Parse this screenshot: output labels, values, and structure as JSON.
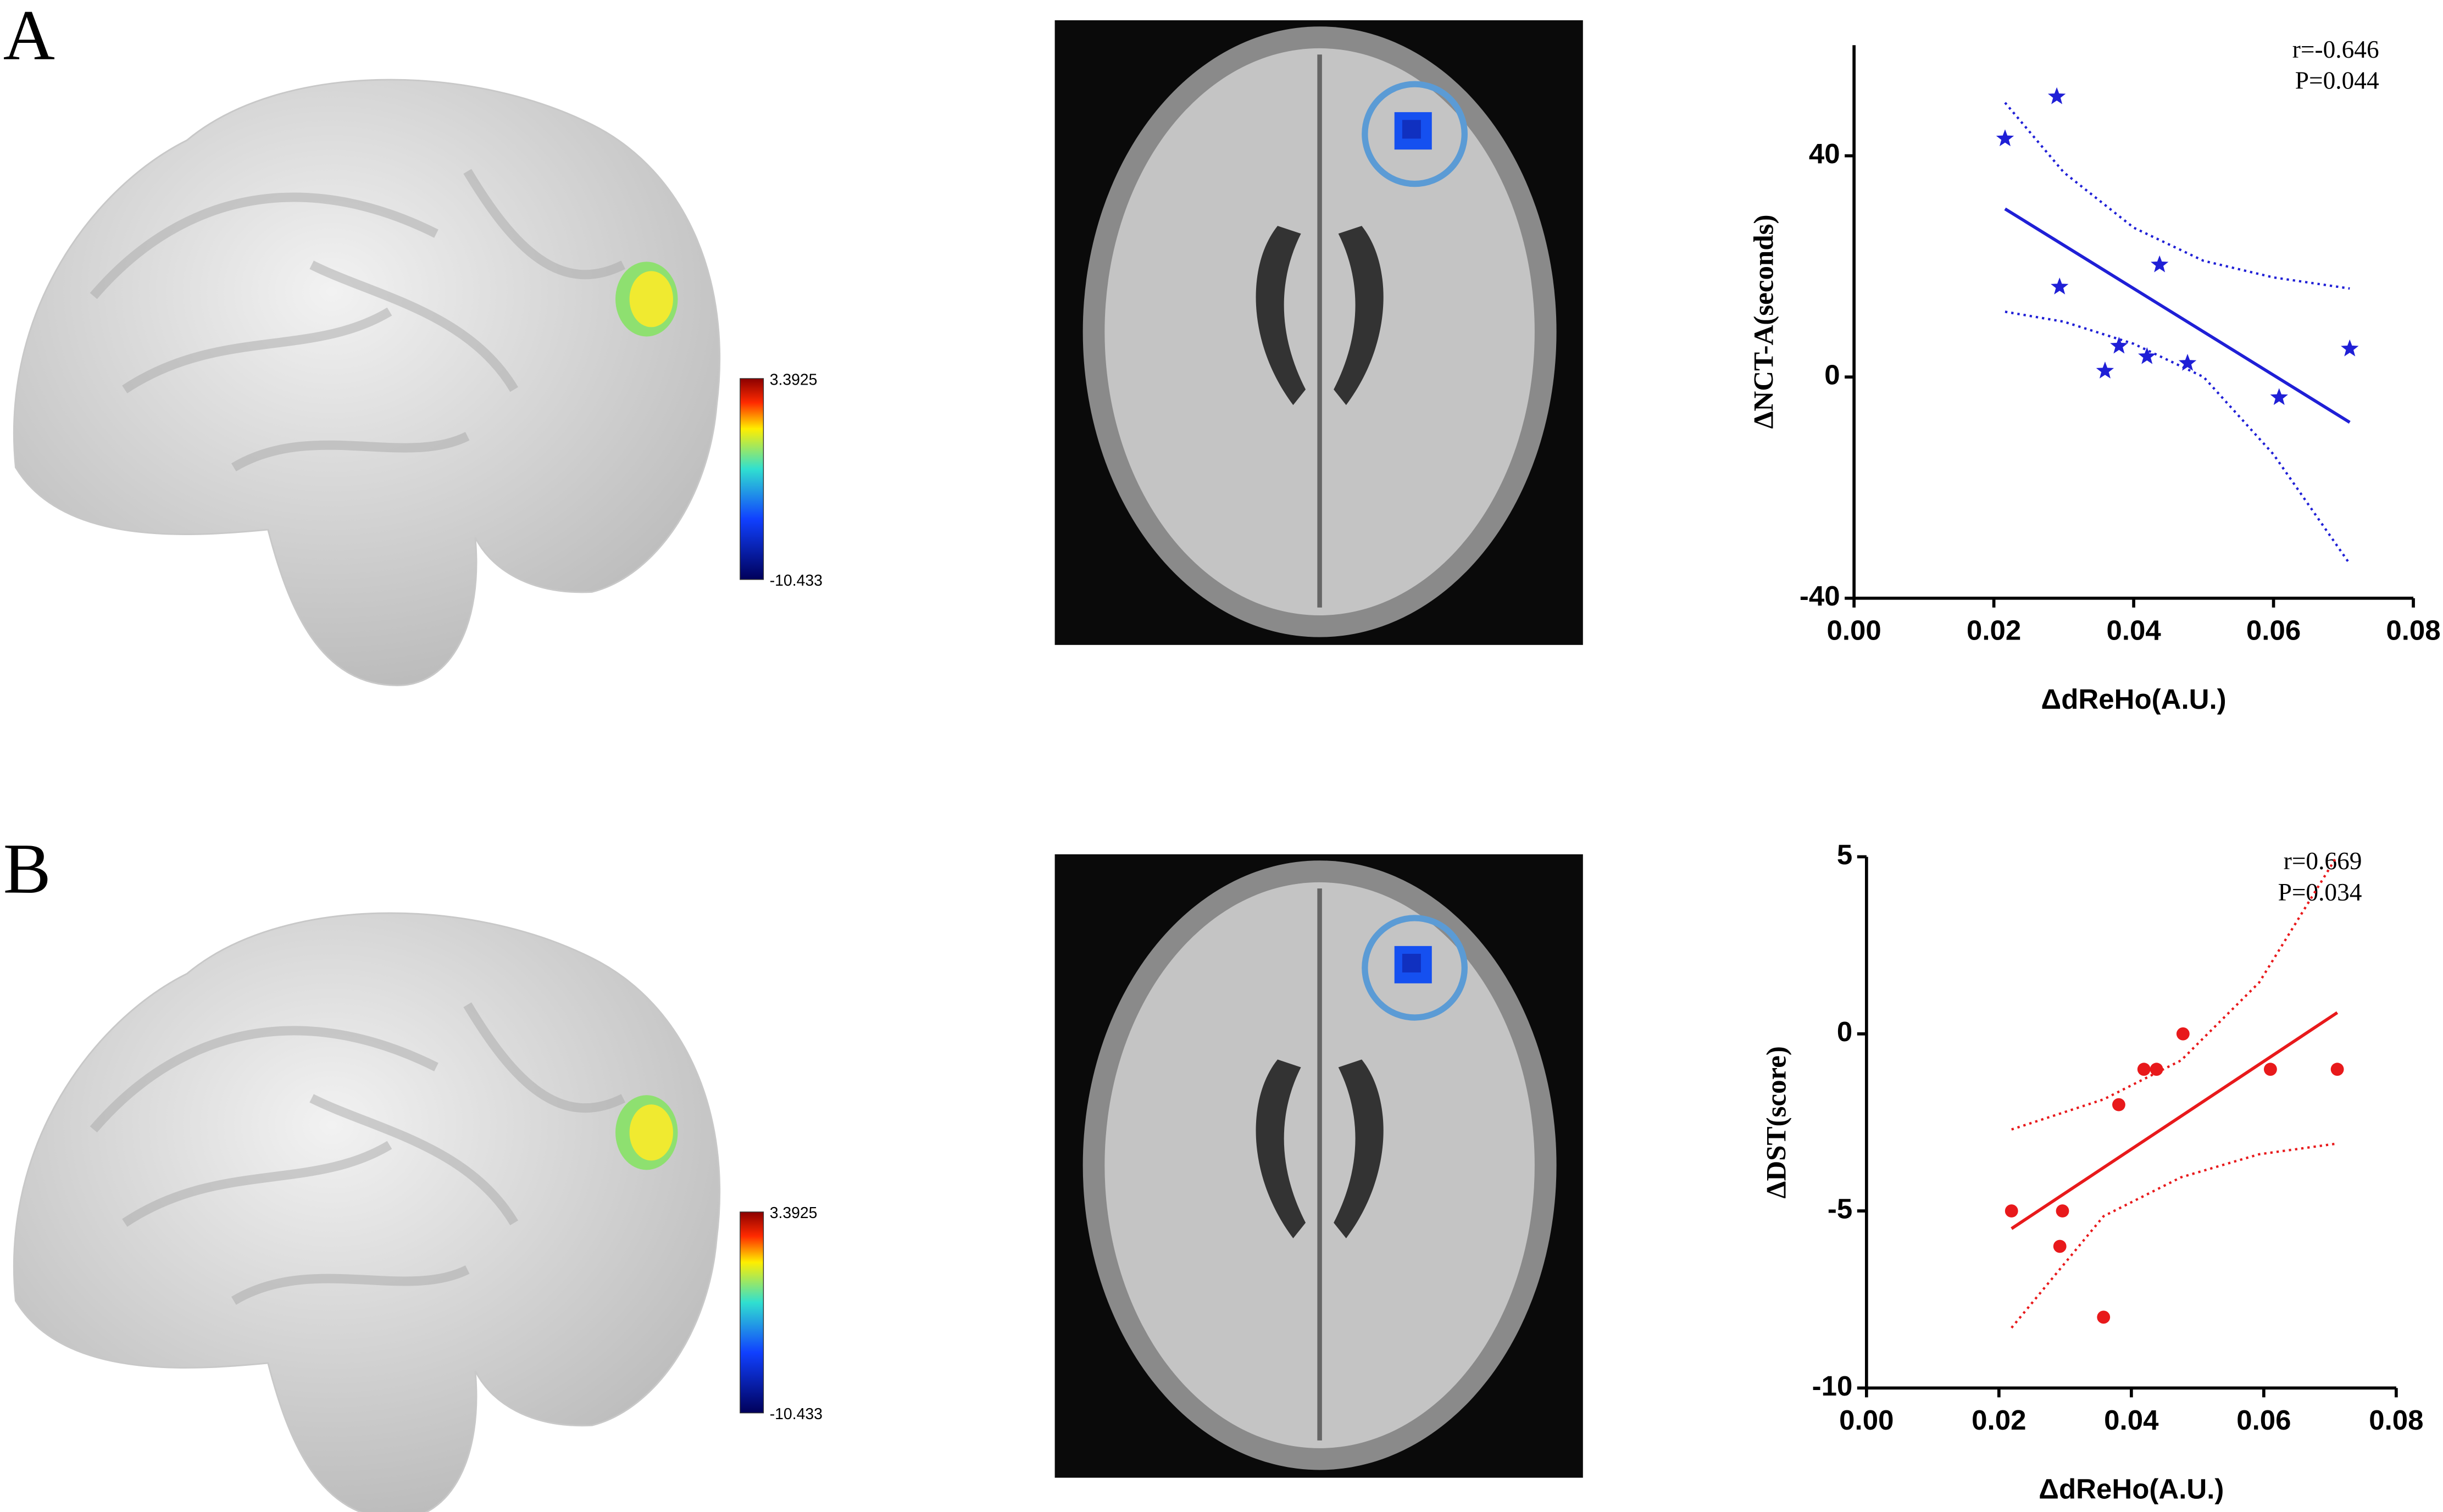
{
  "panels": [
    {
      "label": "A",
      "colorbar_max": "3.3925",
      "colorbar_min": "-10.433"
    },
    {
      "label": "B",
      "colorbar_max": "3.3925",
      "colorbar_min": "-10.433"
    }
  ],
  "chart_data": [
    {
      "type": "scatter",
      "xlabel": "ΔdReHo(A.U.)",
      "ylabel": "ΔNCT-A(seconds)",
      "annotations": [
        "r=-0.646",
        "P=0.044"
      ],
      "xlim": [
        0,
        0.08
      ],
      "ylim": [
        -40,
        60
      ],
      "xticks": [
        {
          "value": 0,
          "label": "0.00"
        },
        {
          "value": 0.02,
          "label": "0.02"
        },
        {
          "value": 0.04,
          "label": "0.04"
        },
        {
          "value": 0.06,
          "label": "0.06"
        },
        {
          "value": 0.08,
          "label": "0.08"
        }
      ],
      "yticks": [
        -40,
        0,
        40
      ],
      "series": [
        {
          "mode": "markers",
          "marker": "star",
          "color": "#1f1fd6",
          "x": [
            0.0216,
            0.029,
            0.0294,
            0.0437,
            0.0379,
            0.0359,
            0.0419,
            0.0477,
            0.0608,
            0.0709
          ],
          "values": [
            43.1,
            50.7,
            16.3,
            20.3,
            5.6,
            1.1,
            3.7,
            2.5,
            -3.7,
            5.1
          ]
        },
        {
          "mode": "line",
          "dash": "solid",
          "color": "#1f1fd6",
          "x": [
            0.0216,
            0.0709
          ],
          "values": [
            30.4,
            -8.2
          ]
        },
        {
          "mode": "line",
          "dash": "dotted",
          "color": "#1f1fd6",
          "x": [
            0.0216,
            0.03,
            0.04,
            0.05,
            0.06,
            0.0709
          ],
          "values": [
            49.6,
            37,
            27,
            21,
            18,
            16
          ]
        },
        {
          "mode": "line",
          "dash": "dotted",
          "color": "#1f1fd6",
          "x": [
            0.0216,
            0.03,
            0.04,
            0.05,
            0.06,
            0.0709
          ],
          "values": [
            11.8,
            10,
            6,
            0,
            -14,
            -33.8
          ]
        }
      ]
    },
    {
      "type": "scatter",
      "xlabel": "ΔdReHo(A.U.)",
      "ylabel": "ΔDST(score)",
      "annotations": [
        "r=0.669",
        "P=0.034"
      ],
      "xlim": [
        0,
        0.08
      ],
      "ylim": [
        -10,
        5
      ],
      "xticks": [
        {
          "value": 0,
          "label": "0.00"
        },
        {
          "value": 0.02,
          "label": "0.02"
        },
        {
          "value": 0.04,
          "label": "0.04"
        },
        {
          "value": 0.06,
          "label": "0.06"
        },
        {
          "value": 0.08,
          "label": "0.08"
        }
      ],
      "yticks": [
        -10,
        -5,
        0,
        5
      ],
      "series": [
        {
          "mode": "markers",
          "marker": "circle",
          "color": "#e8191b",
          "x": [
            0.0219,
            0.0296,
            0.0292,
            0.0358,
            0.0381,
            0.0419,
            0.0438,
            0.0478,
            0.061,
            0.0711
          ],
          "values": [
            -5,
            -5,
            -6,
            -8,
            -2,
            -1,
            -1,
            0,
            -1,
            -1
          ]
        },
        {
          "mode": "line",
          "dash": "solid",
          "color": "#e8191b",
          "x": [
            0.0219,
            0.0711
          ],
          "values": [
            -5.5,
            0.6
          ]
        },
        {
          "mode": "line",
          "dash": "dotted",
          "color": "#e8191b",
          "x": [
            0.0219,
            0.0358,
            0.0475,
            0.0593,
            0.071
          ],
          "values": [
            -2.7,
            -1.85,
            -0.75,
            1.45,
            5
          ]
        },
        {
          "mode": "line",
          "dash": "dotted",
          "color": "#e8191b",
          "x": [
            0.0219,
            0.0358,
            0.0475,
            0.0593,
            0.071
          ],
          "values": [
            -8.3,
            -5.15,
            -4.05,
            -3.4,
            -3.1
          ]
        }
      ]
    }
  ]
}
